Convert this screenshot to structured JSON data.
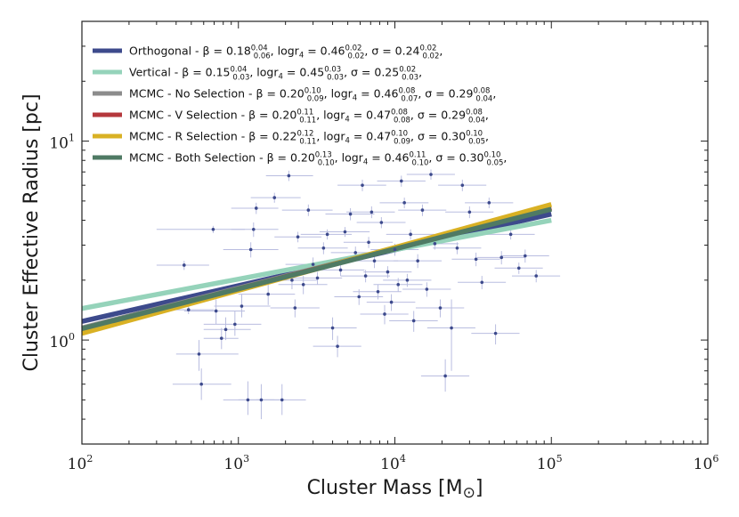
{
  "chart_data": {
    "type": "scatter",
    "xlabel": "Cluster Mass [M",
    "xlabel_symbol": "⊙",
    "xlabel_close": "]",
    "ylabel": "Cluster Effective Radius [pc]",
    "x_scale": "log",
    "y_scale": "log",
    "xlim": [
      100,
      1000000
    ],
    "ylim": [
      0.3,
      40
    ],
    "x_ticks": [
      {
        "value": 100,
        "base": "10",
        "exp": "2"
      },
      {
        "value": 1000,
        "base": "10",
        "exp": "3"
      },
      {
        "value": 10000,
        "base": "10",
        "exp": "4"
      },
      {
        "value": 100000,
        "base": "10",
        "exp": "5"
      },
      {
        "value": 1000000,
        "base": "10",
        "exp": "6"
      }
    ],
    "y_ticks": [
      {
        "value": 1,
        "base": "10",
        "exp": "0"
      },
      {
        "value": 10,
        "base": "10",
        "exp": "1"
      }
    ],
    "grid": false,
    "legend_position": "top-left",
    "series": [
      {
        "name": "Orthogonal - β = 0.18",
        "beta": 0.18,
        "beta_up": "0.04",
        "beta_dn": "0.06",
        "logr4": 0.46,
        "logr4_up": "0.02",
        "logr4_dn": "0.02",
        "sigma": 0.24,
        "sigma_up": "0.02",
        "sigma_dn": "0.02",
        "color": "#3d4a8c",
        "y_at_1e2": 1.24,
        "y_at_1e5": 4.3
      },
      {
        "name": "Vertical - β = 0.15",
        "beta": 0.15,
        "beta_up": "0.04",
        "beta_dn": "0.03",
        "logr4": 0.45,
        "logr4_up": "0.03",
        "logr4_dn": "0.03",
        "sigma": 0.25,
        "sigma_up": "0.02",
        "sigma_dn": "0.03",
        "color": "#95d3ba",
        "y_at_1e2": 1.44,
        "y_at_1e5": 4.0
      },
      {
        "name": "MCMC - No Selection - β = 0.20",
        "beta": 0.2,
        "beta_up": "0.10",
        "beta_dn": "0.09",
        "logr4": 0.46,
        "logr4_up": "0.08",
        "logr4_dn": "0.07",
        "sigma": 0.29,
        "sigma_up": "0.08",
        "sigma_dn": "0.04",
        "color": "#8c8c8c",
        "y_at_1e2": 1.15,
        "y_at_1e5": 4.6
      },
      {
        "name": "MCMC - V Selection - β = 0.20",
        "beta": 0.2,
        "beta_up": "0.11",
        "beta_dn": "0.11",
        "logr4": 0.47,
        "logr4_up": "0.08",
        "logr4_dn": "0.08",
        "sigma": 0.29,
        "sigma_up": "0.08",
        "sigma_dn": "0.04",
        "color": "#b5383c",
        "y_at_1e2": 1.13,
        "y_at_1e5": 4.62
      },
      {
        "name": "MCMC - R Selection - β = 0.22",
        "beta": 0.22,
        "beta_up": "0.12",
        "beta_dn": "0.11",
        "logr4": 0.47,
        "logr4_up": "0.10",
        "logr4_dn": "0.09",
        "sigma": 0.3,
        "sigma_up": "0.10",
        "sigma_dn": "0.05",
        "color": "#d9b124",
        "y_at_1e2": 1.08,
        "y_at_1e5": 4.8
      },
      {
        "name": "MCMC - Both Selection - β = 0.20",
        "beta": 0.2,
        "beta_up": "0.13",
        "beta_dn": "0.10",
        "logr4": 0.46,
        "logr4_up": "0.11",
        "logr4_dn": "0.10",
        "sigma": 0.3,
        "sigma_up": "0.10",
        "sigma_dn": "0.05",
        "color": "#4f7a64",
        "y_at_1e2": 1.14,
        "y_at_1e5": 4.55
      }
    ],
    "legend_labels": {
      "logr": "logr",
      "sub4": "4",
      "sigma": "σ",
      "eq": " = ",
      "sep": ", ",
      "end": ","
    },
    "points": {
      "color": "#3d4a8c",
      "errorbar_color": "#b9bde0",
      "data": [
        {
          "x": 450,
          "y": 2.38,
          "xl": 300,
          "xh": 650,
          "yl": 2.25,
          "yh": 2.5
        },
        {
          "x": 480,
          "y": 1.42,
          "xl": 200,
          "xh": 700,
          "yl": 1.35,
          "yh": 1.5
        },
        {
          "x": 560,
          "y": 0.85,
          "xl": 400,
          "xh": 1000,
          "yl": 0.7,
          "yh": 1.0
        },
        {
          "x": 580,
          "y": 0.6,
          "xl": 380,
          "xh": 900,
          "yl": 0.5,
          "yh": 0.72
        },
        {
          "x": 690,
          "y": 3.6,
          "xl": 300,
          "xh": 1100,
          "yl": 3.45,
          "yh": 3.75
        },
        {
          "x": 720,
          "y": 1.4,
          "xl": 450,
          "xh": 1100,
          "yl": 1.2,
          "yh": 1.6
        },
        {
          "x": 780,
          "y": 1.02,
          "xl": 600,
          "xh": 1000,
          "yl": 0.9,
          "yh": 1.15
        },
        {
          "x": 830,
          "y": 1.13,
          "xl": 600,
          "xh": 1200,
          "yl": 1.0,
          "yh": 1.3
        },
        {
          "x": 950,
          "y": 1.2,
          "xl": 600,
          "xh": 1400,
          "yl": 1.05,
          "yh": 1.4
        },
        {
          "x": 1050,
          "y": 1.48,
          "xl": 700,
          "xh": 1600,
          "yl": 1.3,
          "yh": 1.7
        },
        {
          "x": 1150,
          "y": 0.5,
          "xl": 800,
          "xh": 1700,
          "yl": 0.42,
          "yh": 0.62
        },
        {
          "x": 1200,
          "y": 2.85,
          "xl": 800,
          "xh": 1800,
          "yl": 2.6,
          "yh": 3.1
        },
        {
          "x": 1250,
          "y": 3.6,
          "xl": 900,
          "xh": 1800,
          "yl": 3.3,
          "yh": 3.9
        },
        {
          "x": 1300,
          "y": 4.6,
          "xl": 900,
          "xh": 1800,
          "yl": 4.3,
          "yh": 4.9
        },
        {
          "x": 1400,
          "y": 0.5,
          "xl": 1000,
          "xh": 2000,
          "yl": 0.4,
          "yh": 0.6
        },
        {
          "x": 1550,
          "y": 1.7,
          "xl": 1000,
          "xh": 2300,
          "yl": 1.5,
          "yh": 1.9
        },
        {
          "x": 1700,
          "y": 5.2,
          "xl": 1200,
          "xh": 2500,
          "yl": 4.9,
          "yh": 5.5
        },
        {
          "x": 1900,
          "y": 0.5,
          "xl": 1300,
          "xh": 2700,
          "yl": 0.42,
          "yh": 0.6
        },
        {
          "x": 2100,
          "y": 6.7,
          "xl": 1500,
          "xh": 3000,
          "yl": 6.3,
          "yh": 7.1
        },
        {
          "x": 2200,
          "y": 2.0,
          "xl": 1500,
          "xh": 3200,
          "yl": 1.8,
          "yh": 2.2
        },
        {
          "x": 2300,
          "y": 1.45,
          "xl": 1600,
          "xh": 3300,
          "yl": 1.3,
          "yh": 1.6
        },
        {
          "x": 2400,
          "y": 3.3,
          "xl": 1700,
          "xh": 3400,
          "yl": 3.1,
          "yh": 3.5
        },
        {
          "x": 2600,
          "y": 1.9,
          "xl": 1800,
          "xh": 3700,
          "yl": 1.7,
          "yh": 2.1
        },
        {
          "x": 2800,
          "y": 4.5,
          "xl": 1900,
          "xh": 4000,
          "yl": 4.2,
          "yh": 4.8
        },
        {
          "x": 3000,
          "y": 2.4,
          "xl": 2000,
          "xh": 4300,
          "yl": 2.2,
          "yh": 2.6
        },
        {
          "x": 3200,
          "y": 2.05,
          "xl": 2200,
          "xh": 4600,
          "yl": 1.9,
          "yh": 2.2
        },
        {
          "x": 3500,
          "y": 2.9,
          "xl": 2400,
          "xh": 5000,
          "yl": 2.7,
          "yh": 3.1
        },
        {
          "x": 3700,
          "y": 3.4,
          "xl": 2500,
          "xh": 5300,
          "yl": 3.2,
          "yh": 3.6
        },
        {
          "x": 4000,
          "y": 1.15,
          "xl": 2800,
          "xh": 5700,
          "yl": 1.0,
          "yh": 1.3
        },
        {
          "x": 4300,
          "y": 0.93,
          "xl": 3000,
          "xh": 6100,
          "yl": 0.82,
          "yh": 1.05
        },
        {
          "x": 4500,
          "y": 2.25,
          "xl": 3100,
          "xh": 6400,
          "yl": 2.1,
          "yh": 2.4
        },
        {
          "x": 4800,
          "y": 3.5,
          "xl": 3300,
          "xh": 6900,
          "yl": 3.3,
          "yh": 3.7
        },
        {
          "x": 5200,
          "y": 4.3,
          "xl": 3600,
          "xh": 7400,
          "yl": 4.0,
          "yh": 4.6
        },
        {
          "x": 5600,
          "y": 2.75,
          "xl": 3900,
          "xh": 8000,
          "yl": 2.55,
          "yh": 2.95
        },
        {
          "x": 5900,
          "y": 1.65,
          "xl": 4100,
          "xh": 8400,
          "yl": 1.5,
          "yh": 1.8
        },
        {
          "x": 6200,
          "y": 6.0,
          "xl": 4300,
          "xh": 8800,
          "yl": 5.6,
          "yh": 6.4
        },
        {
          "x": 6500,
          "y": 2.1,
          "xl": 4500,
          "xh": 9300,
          "yl": 1.95,
          "yh": 2.25
        },
        {
          "x": 6800,
          "y": 3.1,
          "xl": 4700,
          "xh": 9700,
          "yl": 2.9,
          "yh": 3.3
        },
        {
          "x": 7100,
          "y": 4.4,
          "xl": 4900,
          "xh": 10000,
          "yl": 4.1,
          "yh": 4.7
        },
        {
          "x": 7400,
          "y": 2.5,
          "xl": 5100,
          "xh": 10500,
          "yl": 2.3,
          "yh": 2.7
        },
        {
          "x": 7800,
          "y": 1.75,
          "xl": 5400,
          "xh": 11000,
          "yl": 1.6,
          "yh": 1.9
        },
        {
          "x": 8200,
          "y": 3.9,
          "xl": 5700,
          "xh": 11700,
          "yl": 3.65,
          "yh": 4.15
        },
        {
          "x": 8600,
          "y": 1.35,
          "xl": 6000,
          "xh": 12200,
          "yl": 1.2,
          "yh": 1.5
        },
        {
          "x": 9000,
          "y": 2.2,
          "xl": 6300,
          "xh": 12800,
          "yl": 2.05,
          "yh": 2.35
        },
        {
          "x": 9500,
          "y": 1.55,
          "xl": 6600,
          "xh": 13500,
          "yl": 1.4,
          "yh": 1.7
        },
        {
          "x": 10000,
          "y": 2.85,
          "xl": 7000,
          "xh": 14200,
          "yl": 2.65,
          "yh": 3.05
        },
        {
          "x": 10500,
          "y": 1.9,
          "xl": 7300,
          "xh": 15000,
          "yl": 1.75,
          "yh": 2.05
        },
        {
          "x": 11000,
          "y": 6.3,
          "xl": 7700,
          "xh": 15700,
          "yl": 5.9,
          "yh": 6.7
        },
        {
          "x": 11500,
          "y": 4.9,
          "xl": 8000,
          "xh": 16400,
          "yl": 4.6,
          "yh": 5.2
        },
        {
          "x": 12000,
          "y": 2.0,
          "xl": 8400,
          "xh": 17100,
          "yl": 1.85,
          "yh": 2.15
        },
        {
          "x": 12600,
          "y": 3.4,
          "xl": 8800,
          "xh": 17900,
          "yl": 3.2,
          "yh": 3.6
        },
        {
          "x": 13200,
          "y": 1.25,
          "xl": 9200,
          "xh": 18800,
          "yl": 1.1,
          "yh": 1.4
        },
        {
          "x": 14000,
          "y": 2.5,
          "xl": 9800,
          "xh": 19900,
          "yl": 2.3,
          "yh": 2.7
        },
        {
          "x": 15000,
          "y": 4.5,
          "xl": 10500,
          "xh": 21300,
          "yl": 4.2,
          "yh": 4.8
        },
        {
          "x": 16000,
          "y": 1.8,
          "xl": 11200,
          "xh": 22800,
          "yl": 1.65,
          "yh": 1.95
        },
        {
          "x": 17000,
          "y": 6.8,
          "xl": 11900,
          "xh": 24200,
          "yl": 6.4,
          "yh": 7.2
        },
        {
          "x": 18000,
          "y": 3.05,
          "xl": 12600,
          "xh": 25600,
          "yl": 2.85,
          "yh": 3.25
        },
        {
          "x": 19500,
          "y": 1.45,
          "xl": 13600,
          "xh": 27700,
          "yl": 1.3,
          "yh": 1.6
        },
        {
          "x": 21000,
          "y": 0.66,
          "xl": 14700,
          "xh": 29900,
          "yl": 0.55,
          "yh": 0.8
        },
        {
          "x": 23000,
          "y": 1.15,
          "xl": 16100,
          "xh": 32700,
          "yl": 0.7,
          "yh": 1.6
        },
        {
          "x": 25000,
          "y": 2.9,
          "xl": 17500,
          "xh": 35600,
          "yl": 2.7,
          "yh": 3.1
        },
        {
          "x": 27000,
          "y": 6.0,
          "xl": 18900,
          "xh": 38400,
          "yl": 5.6,
          "yh": 6.4
        },
        {
          "x": 30000,
          "y": 4.4,
          "xl": 21000,
          "xh": 42700,
          "yl": 4.1,
          "yh": 4.7
        },
        {
          "x": 33000,
          "y": 2.55,
          "xl": 23100,
          "xh": 47000,
          "yl": 2.35,
          "yh": 2.75
        },
        {
          "x": 36000,
          "y": 1.95,
          "xl": 25200,
          "xh": 51200,
          "yl": 1.8,
          "yh": 2.1
        },
        {
          "x": 40000,
          "y": 4.9,
          "xl": 28000,
          "xh": 57000,
          "yl": 4.6,
          "yh": 5.2
        },
        {
          "x": 44000,
          "y": 1.08,
          "xl": 30800,
          "xh": 62600,
          "yl": 0.95,
          "yh": 1.2
        },
        {
          "x": 48000,
          "y": 2.6,
          "xl": 33600,
          "xh": 68300,
          "yl": 2.4,
          "yh": 2.8
        },
        {
          "x": 55000,
          "y": 3.4,
          "xl": 38500,
          "xh": 78300,
          "yl": 3.2,
          "yh": 3.6
        },
        {
          "x": 62000,
          "y": 2.3,
          "xl": 43400,
          "xh": 88200,
          "yl": 2.15,
          "yh": 2.45
        },
        {
          "x": 68000,
          "y": 2.65,
          "xl": 47600,
          "xh": 96800,
          "yl": 2.45,
          "yh": 2.85
        },
        {
          "x": 80000,
          "y": 2.1,
          "xl": 56000,
          "xh": 113800,
          "yl": 1.95,
          "yh": 2.25
        }
      ]
    }
  }
}
